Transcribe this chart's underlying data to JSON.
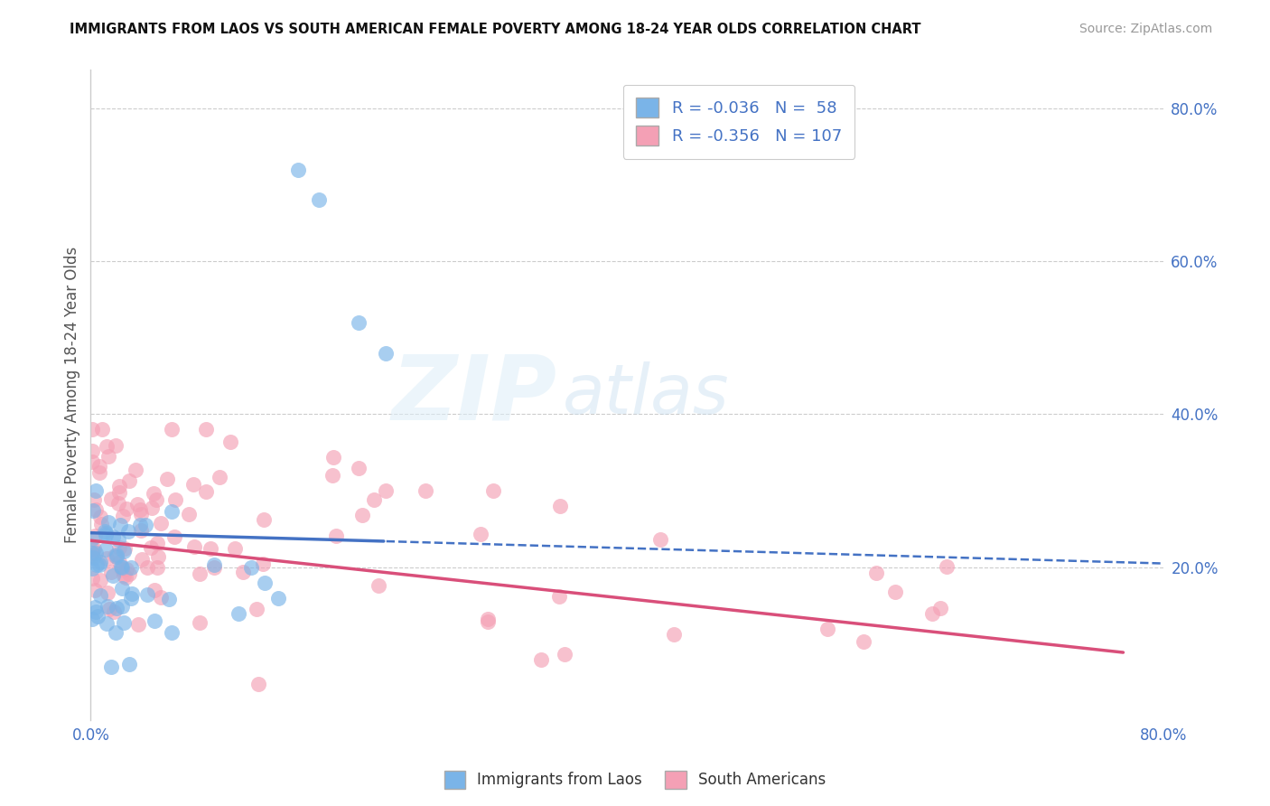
{
  "title": "IMMIGRANTS FROM LAOS VS SOUTH AMERICAN FEMALE POVERTY AMONG 18-24 YEAR OLDS CORRELATION CHART",
  "source": "Source: ZipAtlas.com",
  "ylabel": "Female Poverty Among 18-24 Year Olds",
  "xlim": [
    0,
    0.8
  ],
  "ylim": [
    0,
    0.85
  ],
  "xtick_positions": [
    0.0,
    0.1,
    0.2,
    0.3,
    0.4,
    0.5,
    0.6,
    0.7,
    0.8
  ],
  "xticklabels": [
    "0.0%",
    "",
    "",
    "",
    "",
    "",
    "",
    "",
    "80.0%"
  ],
  "yticks_right": [
    0.2,
    0.4,
    0.6,
    0.8
  ],
  "ytick_labels_right": [
    "20.0%",
    "40.0%",
    "60.0%",
    "80.0%"
  ],
  "legend_r1": "R = -0.036",
  "legend_n1": "N =  58",
  "legend_r2": "R = -0.356",
  "legend_n2": "N = 107",
  "color_laos": "#7ab4e8",
  "color_sa": "#f4a0b5",
  "line_color_laos": "#4472c4",
  "line_color_sa": "#d94f7a",
  "watermark_zip": "ZIP",
  "watermark_atlas": "atlas",
  "background": "#ffffff",
  "seed": 12345
}
